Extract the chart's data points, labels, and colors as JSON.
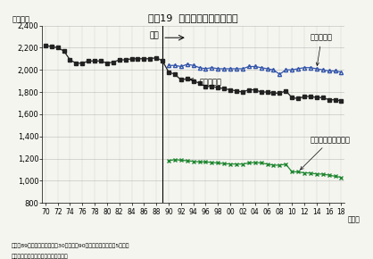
{
  "title": "図表19  年間総労働時間の推移",
  "ylabel": "（時間）",
  "xlabel_end": "（年）",
  "ylim": [
    800,
    2400
  ],
  "yticks": [
    800,
    1000,
    1200,
    1400,
    1600,
    1800,
    2000,
    2200,
    2400
  ],
  "note1": "（注）89年以前は事業所規模30人以上、90年以降は事業所規模5人以上",
  "note2": "（資料）厚生労働省「毎月勤労統計」",
  "heisei_label": "平成",
  "heisei_x": 89,
  "general_label": "一般労働者",
  "sogo_label": "就業形態計",
  "part_label": "パートタイム労働者",
  "x_ticks": [
    70,
    72,
    74,
    76,
    78,
    80,
    82,
    84,
    86,
    88,
    90,
    92,
    94,
    96,
    98,
    0,
    2,
    4,
    6,
    8,
    10,
    12,
    14,
    16,
    18
  ],
  "x_tick_labels": [
    "70",
    "72",
    "74",
    "76",
    "78",
    "80",
    "82",
    "84",
    "86",
    "88",
    "90",
    "92",
    "94",
    "96",
    "98",
    "00",
    "02",
    "04",
    "06",
    "08",
    "10",
    "12",
    "14",
    "16",
    "18"
  ],
  "sogo_x": [
    70,
    71,
    72,
    73,
    74,
    75,
    76,
    77,
    78,
    79,
    80,
    81,
    82,
    83,
    84,
    85,
    86,
    87,
    88,
    89,
    90,
    91,
    92,
    93,
    94,
    95,
    96,
    97,
    98,
    99,
    0,
    1,
    2,
    3,
    4,
    5,
    6,
    7,
    8,
    9,
    10,
    11,
    12,
    13,
    14,
    15,
    16,
    17,
    18
  ],
  "sogo_y": [
    2220,
    2210,
    2200,
    2170,
    2090,
    2060,
    2060,
    2080,
    2080,
    2080,
    2060,
    2070,
    2090,
    2090,
    2100,
    2100,
    2100,
    2100,
    2110,
    2080,
    1980,
    1960,
    1910,
    1920,
    1900,
    1880,
    1850,
    1850,
    1840,
    1830,
    1820,
    1810,
    1800,
    1820,
    1820,
    1800,
    1800,
    1790,
    1790,
    1810,
    1750,
    1740,
    1760,
    1760,
    1750,
    1750,
    1730,
    1730,
    1720
  ],
  "sogo_color": "#222222",
  "sogo_marker": "s",
  "general_x": [
    90,
    91,
    92,
    93,
    94,
    95,
    96,
    97,
    98,
    99,
    0,
    1,
    2,
    3,
    4,
    5,
    6,
    7,
    8,
    9,
    10,
    11,
    12,
    13,
    14,
    15,
    16,
    17,
    18
  ],
  "general_y": [
    2040,
    2040,
    2030,
    2050,
    2040,
    2020,
    2010,
    2020,
    2010,
    2010,
    2010,
    2010,
    2010,
    2030,
    2030,
    2020,
    2010,
    2000,
    1960,
    2000,
    2000,
    2010,
    2020,
    2020,
    2010,
    2000,
    1990,
    1990,
    1980
  ],
  "general_color": "#3355aa",
  "general_marker": "^",
  "part_x": [
    90,
    91,
    92,
    93,
    94,
    95,
    96,
    97,
    98,
    99,
    0,
    1,
    2,
    3,
    4,
    5,
    6,
    7,
    8,
    9,
    10,
    11,
    12,
    13,
    14,
    15,
    16,
    17,
    18
  ],
  "part_y": [
    1180,
    1190,
    1185,
    1180,
    1175,
    1170,
    1170,
    1165,
    1160,
    1155,
    1150,
    1150,
    1150,
    1160,
    1165,
    1160,
    1150,
    1140,
    1140,
    1150,
    1080,
    1080,
    1070,
    1070,
    1060,
    1060,
    1050,
    1040,
    1030
  ],
  "part_color": "#228833",
  "part_marker": "x"
}
